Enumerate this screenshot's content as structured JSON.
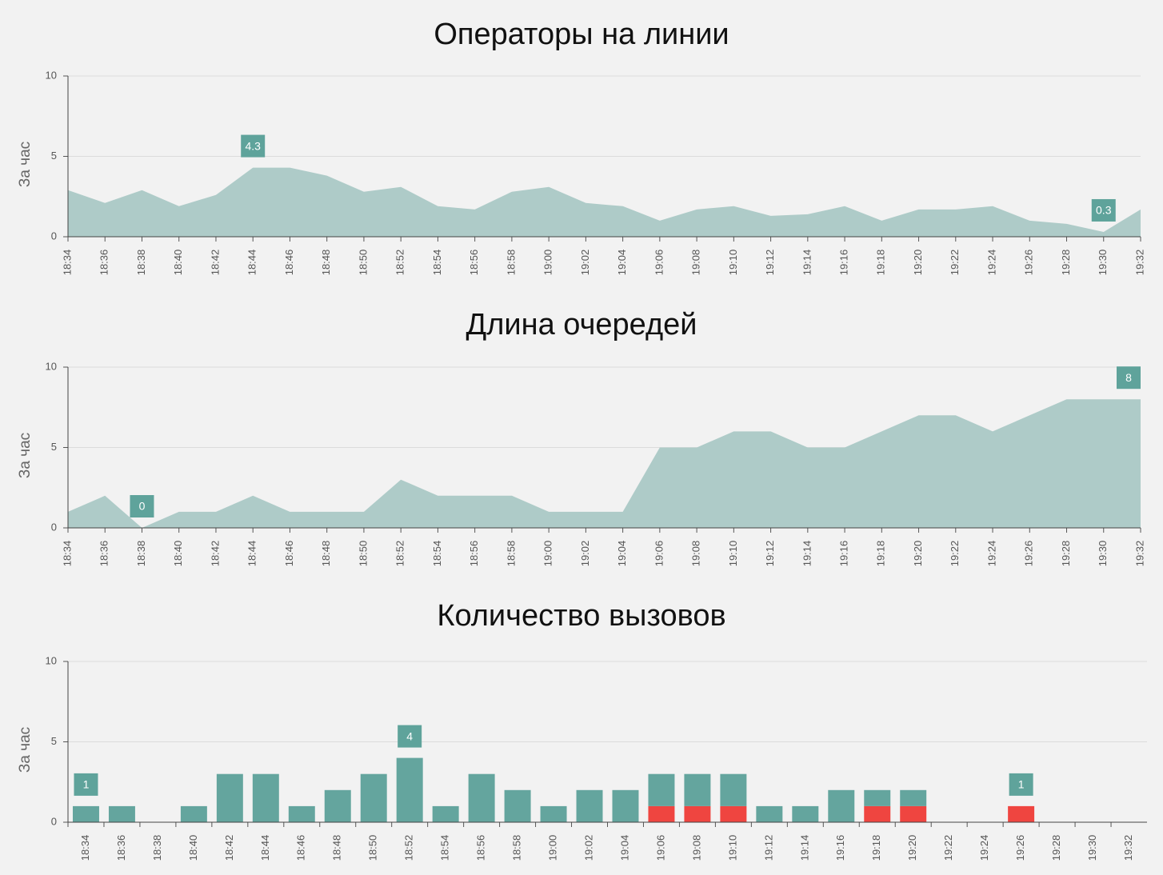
{
  "chart_data": [
    {
      "type": "area",
      "title": "Операторы на линии",
      "ylabel": "За час",
      "color": "#aecbc8",
      "label_color": "#5fa39b",
      "categories": [
        "18:34",
        "18:36",
        "18:38",
        "18:40",
        "18:42",
        "18:44",
        "18:46",
        "18:48",
        "18:50",
        "18:52",
        "18:54",
        "18:56",
        "18:58",
        "19:00",
        "19:02",
        "19:04",
        "19:06",
        "19:08",
        "19:10",
        "19:12",
        "19:14",
        "19:16",
        "19:18",
        "19:20",
        "19:22",
        "19:24",
        "19:26",
        "19:28",
        "19:30",
        "19:32"
      ],
      "values": [
        2.9,
        2.1,
        2.9,
        1.9,
        2.6,
        4.3,
        4.3,
        3.8,
        2.8,
        3.1,
        1.9,
        1.7,
        2.8,
        3.1,
        2.1,
        1.9,
        1.0,
        1.7,
        1.9,
        1.3,
        1.4,
        1.9,
        1.0,
        1.7,
        1.7,
        1.9,
        1.0,
        0.8,
        0.3,
        1.7
      ],
      "value_labels": [
        null,
        null,
        null,
        null,
        null,
        "4.3",
        null,
        null,
        null,
        null,
        null,
        null,
        null,
        null,
        null,
        null,
        null,
        null,
        null,
        null,
        null,
        null,
        null,
        null,
        null,
        null,
        null,
        null,
        "0.3",
        null
      ],
      "ylim": [
        0,
        10
      ],
      "yticks": [
        0,
        5,
        10
      ],
      "grid": true
    },
    {
      "type": "area",
      "title": "Длина очередей",
      "ylabel": "За час",
      "color": "#aecbc8",
      "label_color": "#5fa39b",
      "categories": [
        "18:34",
        "18:36",
        "18:38",
        "18:40",
        "18:42",
        "18:44",
        "18:46",
        "18:48",
        "18:50",
        "18:52",
        "18:54",
        "18:56",
        "18:58",
        "19:00",
        "19:02",
        "19:04",
        "19:06",
        "19:08",
        "19:10",
        "19:12",
        "19:14",
        "19:16",
        "19:18",
        "19:20",
        "19:22",
        "19:24",
        "19:26",
        "19:28",
        "19:30",
        "19:32"
      ],
      "values": [
        1,
        2,
        0,
        1,
        1,
        2,
        1,
        1,
        1,
        3,
        2,
        2,
        2,
        1,
        1,
        1,
        5,
        5,
        6,
        6,
        5,
        5,
        6,
        7,
        7,
        6,
        7,
        8,
        8,
        8
      ],
      "value_labels": [
        null,
        null,
        "0",
        null,
        null,
        null,
        null,
        null,
        null,
        null,
        null,
        null,
        null,
        null,
        null,
        null,
        null,
        null,
        null,
        null,
        null,
        null,
        null,
        null,
        null,
        null,
        null,
        null,
        null,
        "8"
      ],
      "ylim": [
        0,
        10
      ],
      "yticks": [
        0,
        5,
        10
      ],
      "grid": true
    },
    {
      "type": "stacked_bar",
      "title": "Количество вызовов",
      "ylabel": "За час",
      "label_color": "#5fa39b",
      "categories": [
        "18:34",
        "18:36",
        "18:38",
        "18:40",
        "18:42",
        "18:44",
        "18:46",
        "18:48",
        "18:50",
        "18:52",
        "18:54",
        "18:56",
        "18:58",
        "19:00",
        "19:02",
        "19:04",
        "19:06",
        "19:08",
        "19:10",
        "19:12",
        "19:14",
        "19:16",
        "19:18",
        "19:20",
        "19:22",
        "19:24",
        "19:26",
        "19:28",
        "19:30",
        "19:32"
      ],
      "series": [
        {
          "color": "#ef4540",
          "values": [
            0,
            0,
            0,
            0,
            0,
            0,
            0,
            0,
            0,
            0,
            0,
            0,
            0,
            0,
            0,
            0,
            1,
            1,
            1,
            0,
            0,
            0,
            1,
            1,
            0,
            0,
            1,
            0,
            0,
            0
          ],
          "value_labels": [
            null,
            null,
            null,
            null,
            null,
            null,
            null,
            null,
            null,
            null,
            null,
            null,
            null,
            null,
            null,
            null,
            null,
            null,
            null,
            null,
            null,
            null,
            null,
            null,
            null,
            null,
            "1",
            null,
            null,
            null
          ]
        },
        {
          "color": "#64a59e",
          "values": [
            1,
            1,
            0,
            1,
            3,
            3,
            1,
            2,
            3,
            4,
            1,
            3,
            2,
            1,
            2,
            2,
            2,
            2,
            2,
            1,
            1,
            2,
            1,
            1,
            0,
            0,
            0,
            0,
            0,
            0
          ],
          "value_labels": [
            "1",
            null,
            null,
            null,
            null,
            null,
            null,
            null,
            null,
            "4",
            null,
            null,
            null,
            null,
            null,
            null,
            null,
            null,
            null,
            null,
            null,
            null,
            null,
            null,
            null,
            null,
            null,
            null,
            null,
            null
          ]
        }
      ],
      "ylim": [
        0,
        10
      ],
      "yticks": [
        0,
        5,
        10
      ],
      "grid": true
    }
  ]
}
